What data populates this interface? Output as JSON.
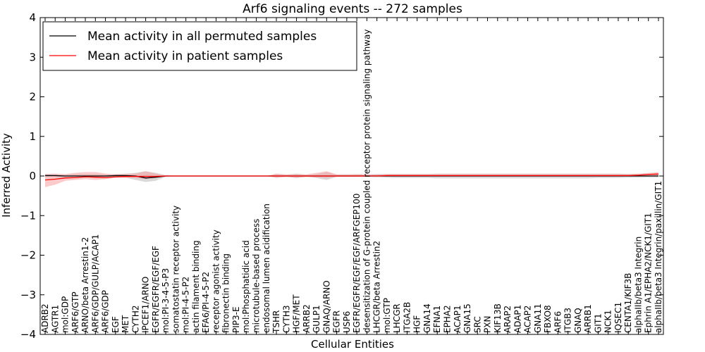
{
  "chart_data": {
    "type": "line",
    "title": "Arf6 signaling events -- 272 samples",
    "xlabel": "Cellular Entities",
    "ylabel": "Inferred Activity",
    "ylim": [
      -4,
      4
    ],
    "yticks": [
      -4,
      -3,
      -2,
      -1,
      0,
      1,
      2,
      3,
      4
    ],
    "ytick_labels": [
      "−4",
      "−3",
      "−2",
      "−1",
      "0",
      "1",
      "2",
      "3",
      "4"
    ],
    "grid": false,
    "legend_position": "top-left",
    "categories": [
      "ADRB2",
      "AGTR1",
      "mol:GDP",
      "ARF6/GTP",
      "ARNO/beta Arrestin1-2",
      "ARF6/GDP/GULP/ACAP1",
      "ARF6/GDP",
      "EGF",
      "MET",
      "CYTH2",
      "IPCEF1/ARNO",
      "EGFR/EGFR/EGF/EGF",
      "mol:PI-3-4-5-P3",
      "somatostatin receptor activity",
      "mol:PI-4-5-P2",
      "actin filament binding",
      "EFA6/PI-4-5-P2",
      "receptor agonist activity",
      "fibronectin binding",
      "PIP3-E",
      "mol:Phosphatidic acid",
      "microtubule-based process",
      "endosomal lumen acidification",
      "TSHR",
      "CYTH3",
      "HGF/MET",
      "ARRB2",
      "GULP1",
      "GNAQ/ARNO",
      "EGFR",
      "USP6",
      "EGFR/EGFR/EGF/EGF/ARFGEP100",
      "desensitization of G-protein coupled receptor protein signaling pathway",
      "LHCGR/beta Arrestin2",
      "mol:GTP",
      "LHCGR",
      "ITGA2B",
      "HGF",
      "GNA14",
      "EFNA1",
      "EPHA2",
      "ACAP1",
      "GNA15",
      "SRC",
      "PXN",
      "KIF13B",
      "ARAP2",
      "ADAP1",
      "ACAP2",
      "GNA11",
      "FBXO8",
      "ARF6",
      "ITGB3",
      "GNAQ",
      "ARRB1",
      "GIT1",
      "NCK1",
      "IQSEC1",
      "CENTA1/KIF3B",
      "alphaIIb/beta3 Integrin",
      "Ephrin A1/EPHA2/NCK1/GIT1",
      "alphaIIb/beta3 Integrin/paxillin/GIT1"
    ],
    "series": [
      {
        "name": "Mean activity in all permuted samples",
        "color": "#000000",
        "band_color": "#bfbfbf",
        "values": [
          0.01,
          0.01,
          0,
          0,
          0,
          0,
          0,
          0.01,
          0.01,
          0,
          -0.05,
          -0.03,
          0,
          0,
          0,
          0,
          0,
          0,
          0,
          0,
          0,
          0,
          0,
          0,
          0,
          0,
          0,
          0,
          0,
          0,
          0,
          0,
          0,
          0,
          0,
          0,
          0,
          0,
          0,
          0,
          0,
          0,
          0,
          0,
          0,
          0,
          0,
          0,
          0,
          0,
          0,
          0,
          0,
          0,
          0,
          0,
          0,
          0,
          0,
          0,
          0,
          0
        ],
        "lower": [
          -0.02,
          -0.02,
          -0.05,
          -0.04,
          -0.03,
          -0.03,
          -0.02,
          -0.02,
          -0.04,
          -0.1,
          -0.15,
          -0.12,
          -0.02,
          0,
          0,
          0,
          0,
          0,
          0,
          0,
          0,
          0,
          0,
          -0.03,
          -0.02,
          -0.05,
          -0.02,
          -0.05,
          -0.1,
          -0.02,
          -0.02,
          -0.02,
          -0.02,
          -0.03,
          -0.04,
          -0.05,
          -0.05,
          -0.05,
          -0.05,
          -0.06,
          -0.06,
          -0.06,
          -0.06,
          -0.06,
          -0.06,
          -0.06,
          -0.06,
          -0.06,
          -0.06,
          -0.06,
          -0.06,
          -0.06,
          -0.06,
          -0.06,
          -0.06,
          -0.05,
          -0.05,
          -0.05,
          -0.04,
          -0.04,
          -0.03,
          -0.03
        ],
        "upper": [
          0.05,
          0.04,
          0.03,
          0.05,
          0.05,
          0.05,
          0.04,
          0.05,
          0.06,
          0.08,
          0.12,
          0.08,
          0.02,
          0,
          0,
          0,
          0,
          0,
          0,
          0,
          0,
          0,
          0,
          0.05,
          0.03,
          0.06,
          0.03,
          0.05,
          0.1,
          0.04,
          0.04,
          0.04,
          0.04,
          0.05,
          0.05,
          0.05,
          0.05,
          0.05,
          0.05,
          0.06,
          0.06,
          0.06,
          0.06,
          0.06,
          0.06,
          0.06,
          0.06,
          0.06,
          0.06,
          0.06,
          0.06,
          0.06,
          0.06,
          0.06,
          0.06,
          0.06,
          0.06,
          0.06,
          0.05,
          0.05,
          0.05,
          0.05
        ]
      },
      {
        "name": "Mean activity in patient samples",
        "color": "#ff0000",
        "band_color": "#f7a0a0",
        "values": [
          -0.1,
          -0.08,
          -0.05,
          -0.04,
          -0.02,
          -0.03,
          -0.04,
          -0.02,
          -0.01,
          -0.01,
          -0.01,
          -0.01,
          0,
          0,
          0,
          0,
          0,
          0,
          0,
          0,
          0,
          0,
          0,
          0,
          0,
          0,
          0,
          0,
          0,
          0,
          0,
          0,
          0,
          0,
          0.01,
          0.01,
          0.01,
          0.01,
          0.01,
          0.01,
          0.01,
          0.01,
          0.01,
          0.01,
          0.01,
          0.01,
          0.01,
          0.01,
          0.01,
          0.01,
          0.01,
          0.01,
          0.01,
          0.01,
          0.01,
          0.01,
          0.01,
          0.01,
          0.01,
          0.02,
          0.04,
          0.05
        ],
        "lower": [
          -0.28,
          -0.22,
          -0.12,
          -0.1,
          -0.08,
          -0.1,
          -0.08,
          -0.05,
          -0.05,
          -0.05,
          -0.08,
          -0.05,
          -0.01,
          0,
          0,
          0,
          0,
          0,
          0,
          0,
          0,
          0,
          0,
          -0.05,
          -0.02,
          -0.05,
          -0.02,
          -0.04,
          -0.05,
          -0.02,
          -0.02,
          -0.02,
          -0.01,
          -0.01,
          -0.01,
          -0.01,
          -0.01,
          -0.01,
          -0.01,
          -0.01,
          -0.01,
          -0.01,
          -0.01,
          -0.01,
          -0.01,
          -0.01,
          -0.01,
          -0.01,
          -0.01,
          -0.01,
          -0.01,
          -0.01,
          -0.01,
          -0.01,
          -0.01,
          -0.01,
          -0.01,
          -0.01,
          -0.01,
          -0.01,
          0,
          0.01
        ],
        "upper": [
          0.05,
          0.06,
          0.05,
          0.08,
          0.1,
          0.1,
          0.06,
          0.04,
          0.05,
          0.06,
          0.12,
          0.06,
          0.01,
          0,
          0,
          0,
          0,
          0,
          0,
          0,
          0,
          0,
          0,
          0.06,
          0.04,
          0.05,
          0.04,
          0.08,
          0.12,
          0.04,
          0.04,
          0.05,
          0.04,
          0.04,
          0.05,
          0.05,
          0.05,
          0.05,
          0.05,
          0.05,
          0.05,
          0.05,
          0.05,
          0.05,
          0.05,
          0.05,
          0.05,
          0.05,
          0.05,
          0.05,
          0.05,
          0.05,
          0.05,
          0.05,
          0.05,
          0.05,
          0.05,
          0.05,
          0.05,
          0.06,
          0.08,
          0.1
        ]
      }
    ]
  }
}
